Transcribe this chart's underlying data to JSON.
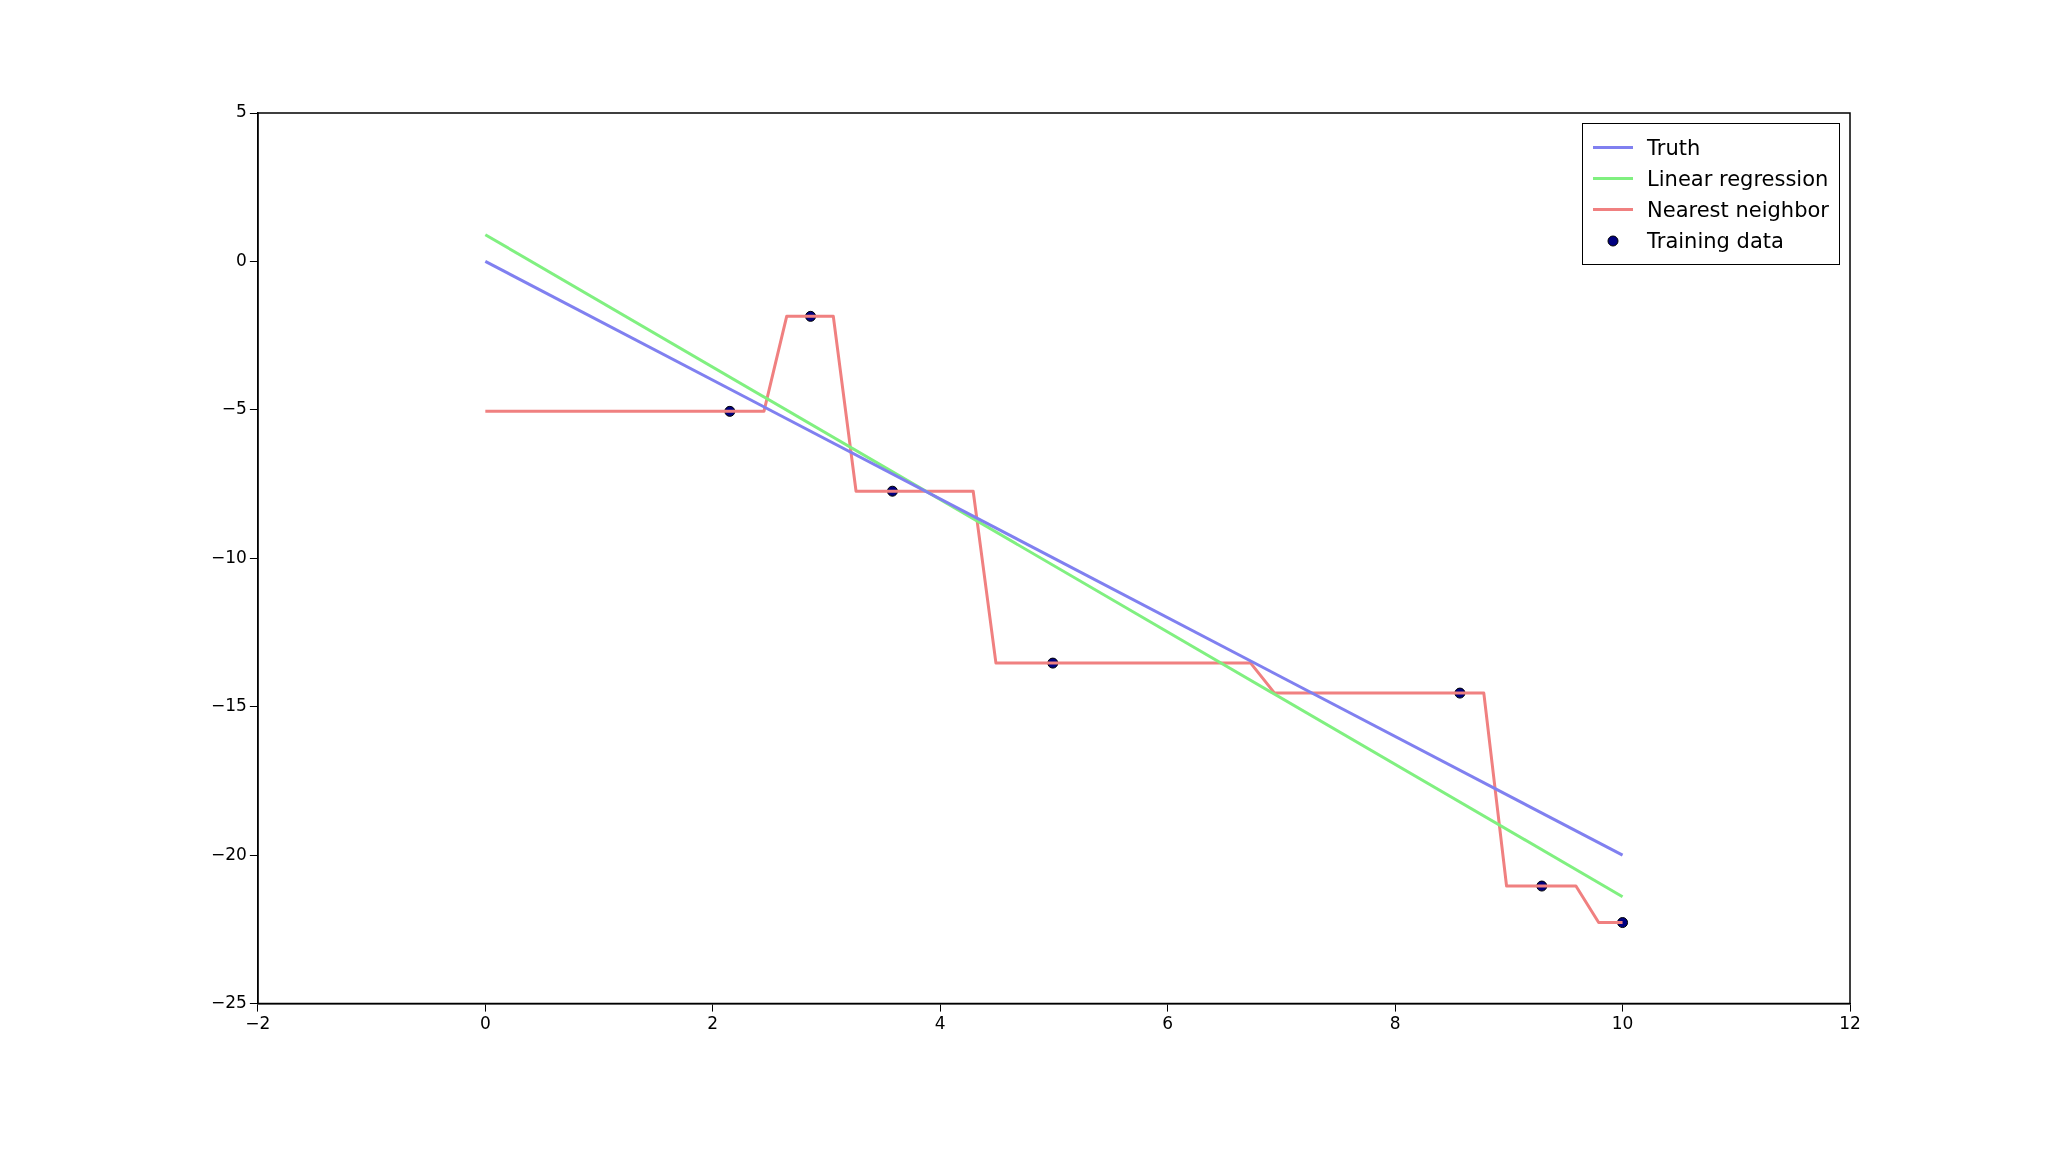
{
  "chart_data": {
    "type": "line",
    "xlim": [
      -2,
      12
    ],
    "xticks": [
      -2,
      0,
      2,
      4,
      6,
      8,
      10,
      12
    ],
    "ylim": [
      -25,
      5
    ],
    "yticks": [
      -25,
      -20,
      -15,
      -10,
      -5,
      0,
      5
    ],
    "grid": false,
    "legend": "top right",
    "series": [
      {
        "name": "Truth",
        "type": "line",
        "color": "#8080f0",
        "marker": "none",
        "x": [
          0,
          10
        ],
        "values": [
          0,
          -20
        ]
      },
      {
        "name": "Linear regression",
        "type": "line",
        "color": "#80f080",
        "marker": "none",
        "x": [
          0,
          10
        ],
        "values": [
          0.9,
          -21.4
        ]
      },
      {
        "name": "Nearest neighbor",
        "type": "line",
        "color": "#f08080",
        "marker": "none",
        "x": [
          0,
          2.45,
          2.65,
          3.06,
          3.26,
          4.29,
          4.49,
          6.73,
          6.94,
          8.78,
          8.98,
          9.59,
          9.79,
          10
        ],
        "values": [
          -5.05,
          -5.05,
          -1.85,
          -1.85,
          -7.74,
          -7.74,
          -13.53,
          -13.53,
          -14.54,
          -14.54,
          -21.04,
          -21.04,
          -22.27,
          -22.27
        ]
      },
      {
        "name": "Training data",
        "type": "scatter",
        "color": "#000080",
        "marker": "circle",
        "x": [
          2.15,
          2.86,
          3.58,
          4.99,
          8.57,
          9.29,
          10
        ],
        "values": [
          -5.05,
          -1.85,
          -7.74,
          -13.53,
          -14.54,
          -21.04,
          -22.27
        ]
      }
    ]
  }
}
